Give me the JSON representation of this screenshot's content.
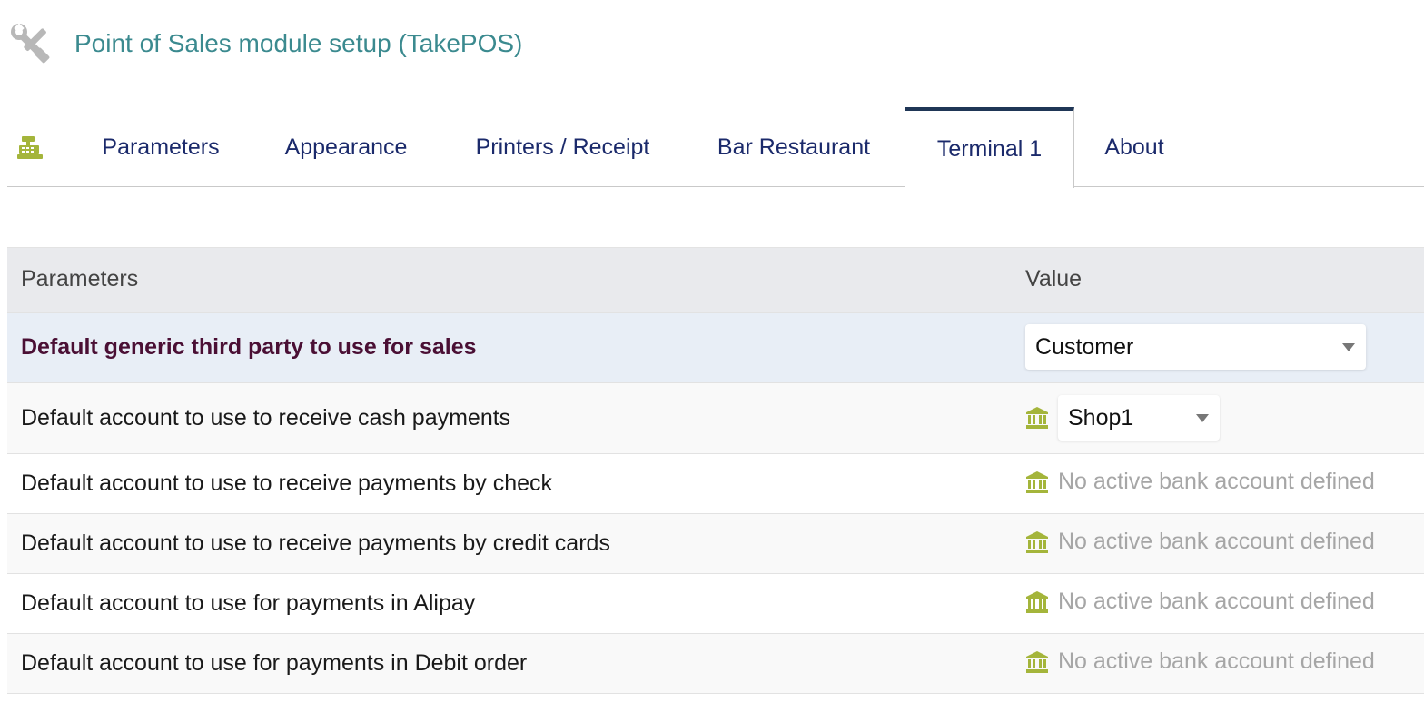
{
  "page": {
    "title": "Point of Sales module setup (TakePOS)",
    "icon": "tools-icon"
  },
  "tabs": [
    {
      "label": "Parameters",
      "active": false
    },
    {
      "label": "Appearance",
      "active": false
    },
    {
      "label": "Printers / Receipt",
      "active": false
    },
    {
      "label": "Bar Restaurant",
      "active": false
    },
    {
      "label": "Terminal 1",
      "active": true
    },
    {
      "label": "About",
      "active": false
    }
  ],
  "colors": {
    "title": "#3b8a8f",
    "tab_text": "#1b2a6b",
    "active_tab_border": "#1f3656",
    "highlight_label": "#4a0f34",
    "bank_icon": "#a4b53b",
    "muted_text": "#a6a6a6"
  },
  "table": {
    "headers": {
      "parameters": "Parameters",
      "value": "Value"
    },
    "rows": [
      {
        "label": "Default generic third party to use for sales",
        "type": "select",
        "value": "Customer"
      },
      {
        "label": "Default account to use to receive cash payments",
        "type": "bank-select",
        "value": "Shop1",
        "icon": "bank-icon"
      },
      {
        "label": "Default account to use to receive payments by check",
        "type": "bank-text",
        "value": "No active bank account defined",
        "icon": "bank-icon"
      },
      {
        "label": "Default account to use to receive payments by credit cards",
        "type": "bank-text",
        "value": "No active bank account defined",
        "icon": "bank-icon"
      },
      {
        "label": "Default account to use for payments in Alipay",
        "type": "bank-text",
        "value": "No active bank account defined",
        "icon": "bank-icon"
      },
      {
        "label": "Default account to use for payments in Debit order",
        "type": "bank-text",
        "value": "No active bank account defined",
        "icon": "bank-icon"
      }
    ]
  }
}
